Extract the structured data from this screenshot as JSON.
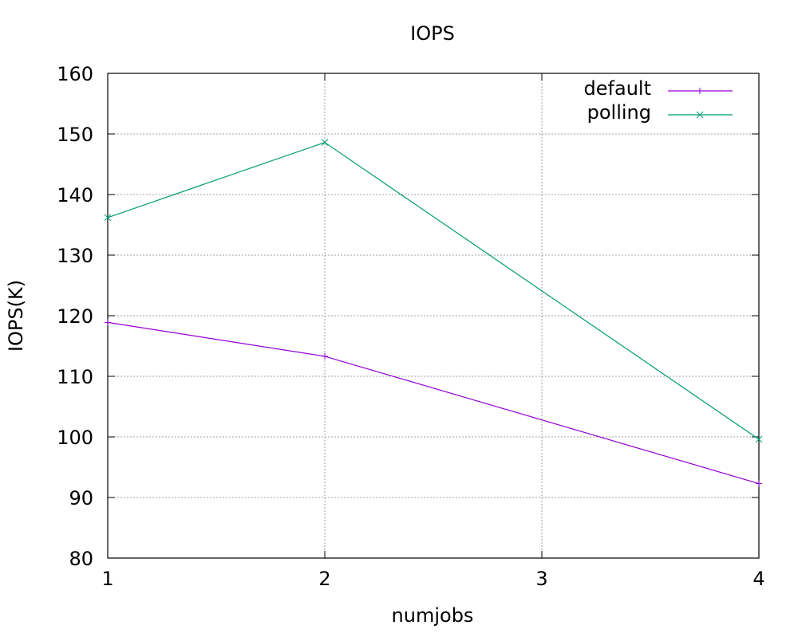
{
  "chart_data": {
    "type": "line",
    "title": "IOPS",
    "xlabel": "numjobs",
    "ylabel": "IOPS(K)",
    "xlim": [
      1,
      4
    ],
    "ylim": [
      80,
      160
    ],
    "xticks": [
      1,
      2,
      3,
      4
    ],
    "yticks": [
      80,
      90,
      100,
      110,
      120,
      130,
      140,
      150,
      160
    ],
    "grid": true,
    "legend_position": "top-right",
    "x": [
      1,
      2,
      4
    ],
    "series": [
      {
        "name": "default",
        "color": "#9400d3",
        "marker": "plus",
        "values": [
          118.9,
          113.3,
          92.3
        ]
      },
      {
        "name": "polling",
        "color": "#009e73",
        "marker": "cross",
        "values": [
          136.2,
          148.6,
          99.6
        ]
      }
    ]
  }
}
